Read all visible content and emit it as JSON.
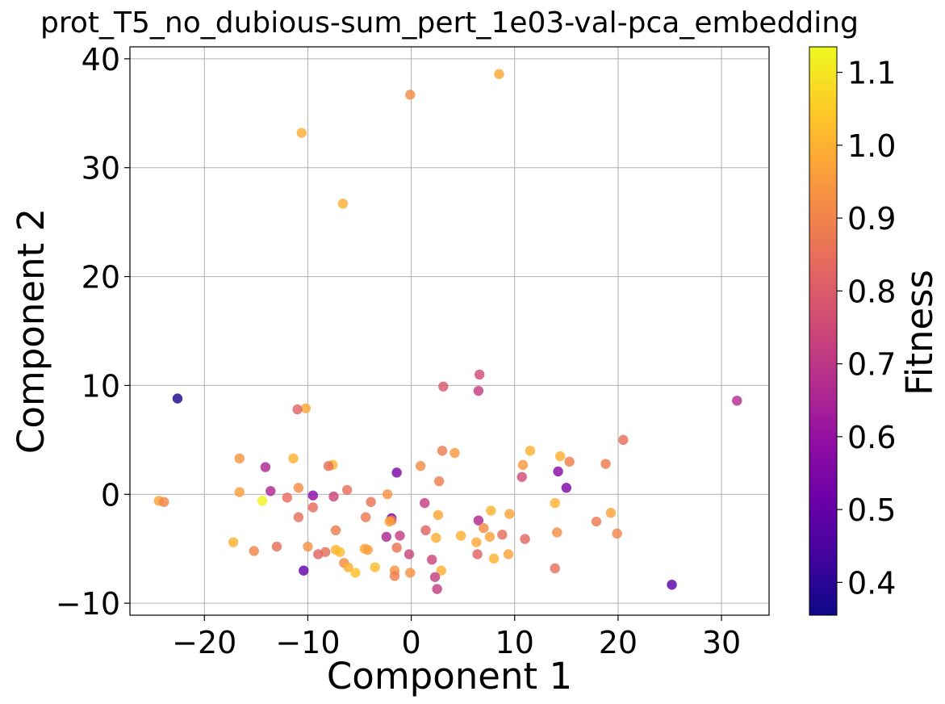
{
  "chart_data": {
    "type": "scatter",
    "title": "prot_T5_no_dubious-sum_pert_1e03-val-pca_embedding",
    "xlabel": "Component 1",
    "ylabel": "Component 2",
    "xlim": [
      -27.2,
      34.6
    ],
    "ylim": [
      -11.1,
      41.1
    ],
    "xticks": [
      -20,
      -10,
      0,
      10,
      20,
      30
    ],
    "yticks": [
      -10,
      0,
      10,
      20,
      30,
      40
    ],
    "xtick_labels": [
      "−20",
      "−10",
      "0",
      "10",
      "20",
      "30"
    ],
    "ytick_labels": [
      "−10",
      "0",
      "10",
      "20",
      "30",
      "40"
    ],
    "grid": true,
    "colormap": "plasma",
    "colorbar": {
      "label": "Fitness",
      "range": [
        0.355,
        1.135
      ],
      "ticks": [
        0.4,
        0.5,
        0.6,
        0.7,
        0.8,
        0.9,
        1.0,
        1.1
      ],
      "tick_labels": [
        "0.4",
        "0.5",
        "0.6",
        "0.7",
        "0.8",
        "0.9",
        "1.0",
        "1.1"
      ]
    },
    "points": [
      {
        "x": 8.5,
        "y": 38.6,
        "fitness": 0.98
      },
      {
        "x": -0.1,
        "y": 36.7,
        "fitness": 0.92
      },
      {
        "x": -10.6,
        "y": 33.2,
        "fitness": 0.99
      },
      {
        "x": -6.6,
        "y": 26.7,
        "fitness": 0.99
      },
      {
        "x": 6.6,
        "y": 11.0,
        "fitness": 0.76
      },
      {
        "x": 3.1,
        "y": 9.9,
        "fitness": 0.79
      },
      {
        "x": 6.5,
        "y": 9.5,
        "fitness": 0.72
      },
      {
        "x": -22.6,
        "y": 8.8,
        "fitness": 0.38
      },
      {
        "x": 31.5,
        "y": 8.6,
        "fitness": 0.67
      },
      {
        "x": -10.2,
        "y": 7.9,
        "fitness": 0.98
      },
      {
        "x": -11.0,
        "y": 7.8,
        "fitness": 0.82
      },
      {
        "x": 20.5,
        "y": 5.0,
        "fitness": 0.85
      },
      {
        "x": 11.5,
        "y": 4.0,
        "fitness": 1.0
      },
      {
        "x": 3.0,
        "y": 4.0,
        "fitness": 0.88
      },
      {
        "x": 4.2,
        "y": 3.8,
        "fitness": 0.95
      },
      {
        "x": 14.4,
        "y": 3.5,
        "fitness": 1.0
      },
      {
        "x": -16.6,
        "y": 3.3,
        "fitness": 0.94
      },
      {
        "x": -11.4,
        "y": 3.3,
        "fitness": 1.0
      },
      {
        "x": 15.3,
        "y": 3.0,
        "fitness": 0.89
      },
      {
        "x": -7.6,
        "y": 2.7,
        "fitness": 1.0
      },
      {
        "x": 18.8,
        "y": 2.8,
        "fitness": 0.88
      },
      {
        "x": 10.8,
        "y": 2.7,
        "fitness": 0.95
      },
      {
        "x": -8.0,
        "y": 2.6,
        "fitness": 0.85
      },
      {
        "x": 0.9,
        "y": 2.6,
        "fitness": 0.92
      },
      {
        "x": -14.1,
        "y": 2.5,
        "fitness": 0.66
      },
      {
        "x": 14.2,
        "y": 2.1,
        "fitness": 0.58
      },
      {
        "x": -1.4,
        "y": 2.0,
        "fitness": 0.55
      },
      {
        "x": 10.7,
        "y": 1.6,
        "fitness": 0.76
      },
      {
        "x": 2.7,
        "y": 1.2,
        "fitness": 0.88
      },
      {
        "x": 15.0,
        "y": 0.6,
        "fitness": 0.55
      },
      {
        "x": -10.9,
        "y": 0.6,
        "fitness": 0.92
      },
      {
        "x": -13.6,
        "y": 0.3,
        "fitness": 0.66
      },
      {
        "x": -6.2,
        "y": 0.4,
        "fitness": 0.85
      },
      {
        "x": -16.6,
        "y": 0.2,
        "fitness": 0.96
      },
      {
        "x": -2.3,
        "y": 0.0,
        "fitness": 0.93
      },
      {
        "x": -9.5,
        "y": -0.1,
        "fitness": 0.58
      },
      {
        "x": -7.5,
        "y": -0.2,
        "fitness": 0.74
      },
      {
        "x": -12.0,
        "y": -0.3,
        "fitness": 0.84
      },
      {
        "x": -24.4,
        "y": -0.6,
        "fitness": 0.97
      },
      {
        "x": -14.4,
        "y": -0.6,
        "fitness": 1.12
      },
      {
        "x": -23.9,
        "y": -0.7,
        "fitness": 0.9
      },
      {
        "x": -3.9,
        "y": -0.7,
        "fitness": 0.86
      },
      {
        "x": 13.9,
        "y": -0.8,
        "fitness": 1.0
      },
      {
        "x": 1.3,
        "y": -0.8,
        "fitness": 0.72
      },
      {
        "x": -9.5,
        "y": -1.2,
        "fitness": 0.85
      },
      {
        "x": 7.7,
        "y": -1.5,
        "fitness": 1.0
      },
      {
        "x": 19.3,
        "y": -1.7,
        "fitness": 0.97
      },
      {
        "x": 9.5,
        "y": -1.8,
        "fitness": 0.97
      },
      {
        "x": 2.6,
        "y": -1.9,
        "fitness": 0.98
      },
      {
        "x": -4.4,
        "y": -2.1,
        "fitness": 0.87
      },
      {
        "x": -10.9,
        "y": -2.1,
        "fitness": 0.85
      },
      {
        "x": -1.9,
        "y": -2.2,
        "fitness": 0.53
      },
      {
        "x": 6.5,
        "y": -2.4,
        "fitness": 0.66
      },
      {
        "x": -1.9,
        "y": -2.4,
        "fitness": 0.88
      },
      {
        "x": -2.1,
        "y": -2.5,
        "fitness": 0.97
      },
      {
        "x": 17.9,
        "y": -2.5,
        "fitness": 0.88
      },
      {
        "x": 7.0,
        "y": -3.1,
        "fitness": 0.92
      },
      {
        "x": -7.3,
        "y": -3.3,
        "fitness": 0.88
      },
      {
        "x": 1.4,
        "y": -3.3,
        "fitness": 0.82
      },
      {
        "x": 14.1,
        "y": -3.5,
        "fitness": 0.92
      },
      {
        "x": 19.9,
        "y": -3.6,
        "fitness": 0.9
      },
      {
        "x": 8.8,
        "y": -3.7,
        "fitness": 0.84
      },
      {
        "x": -1.1,
        "y": -3.8,
        "fitness": 0.72
      },
      {
        "x": 4.8,
        "y": -3.8,
        "fitness": 1.0
      },
      {
        "x": -2.4,
        "y": -3.9,
        "fitness": 0.65
      },
      {
        "x": 7.6,
        "y": -3.9,
        "fitness": 0.97
      },
      {
        "x": 2.4,
        "y": -4.0,
        "fitness": 0.99
      },
      {
        "x": 11.0,
        "y": -4.1,
        "fitness": 0.83
      },
      {
        "x": 6.3,
        "y": -4.4,
        "fitness": 0.98
      },
      {
        "x": -17.2,
        "y": -4.4,
        "fitness": 1.0
      },
      {
        "x": -13.0,
        "y": -4.8,
        "fitness": 0.85
      },
      {
        "x": -10.0,
        "y": -4.8,
        "fitness": 0.93
      },
      {
        "x": -1.4,
        "y": -4.9,
        "fitness": 0.86
      },
      {
        "x": -4.5,
        "y": -5.0,
        "fitness": 0.98
      },
      {
        "x": -4.2,
        "y": -5.1,
        "fitness": 0.96
      },
      {
        "x": -7.3,
        "y": -5.1,
        "fitness": 1.0
      },
      {
        "x": -15.2,
        "y": -5.2,
        "fitness": 0.9
      },
      {
        "x": -8.3,
        "y": -5.3,
        "fitness": 0.85
      },
      {
        "x": -6.9,
        "y": -5.3,
        "fitness": 1.02
      },
      {
        "x": -9.0,
        "y": -5.5,
        "fitness": 0.82
      },
      {
        "x": 9.4,
        "y": -5.5,
        "fitness": 0.97
      },
      {
        "x": 6.4,
        "y": -5.5,
        "fitness": 0.82
      },
      {
        "x": -0.2,
        "y": -5.5,
        "fitness": 0.74
      },
      {
        "x": 8.0,
        "y": -5.9,
        "fitness": 1.0
      },
      {
        "x": 2.0,
        "y": -6.0,
        "fitness": 0.74
      },
      {
        "x": -6.5,
        "y": -6.3,
        "fitness": 0.92
      },
      {
        "x": -6.1,
        "y": -6.7,
        "fitness": 1.0
      },
      {
        "x": -3.5,
        "y": -6.7,
        "fitness": 1.02
      },
      {
        "x": 13.9,
        "y": -6.8,
        "fitness": 0.85
      },
      {
        "x": -10.4,
        "y": -7.0,
        "fitness": 0.5
      },
      {
        "x": -1.6,
        "y": -7.0,
        "fitness": 0.93
      },
      {
        "x": 2.9,
        "y": -7.0,
        "fitness": 1.0
      },
      {
        "x": -5.4,
        "y": -7.2,
        "fitness": 1.03
      },
      {
        "x": -0.1,
        "y": -7.2,
        "fitness": 0.93
      },
      {
        "x": -1.6,
        "y": -7.5,
        "fitness": 0.89
      },
      {
        "x": 2.3,
        "y": -7.6,
        "fitness": 0.72
      },
      {
        "x": 25.2,
        "y": -8.3,
        "fitness": 0.48
      },
      {
        "x": 2.5,
        "y": -8.7,
        "fitness": 0.72
      }
    ]
  }
}
